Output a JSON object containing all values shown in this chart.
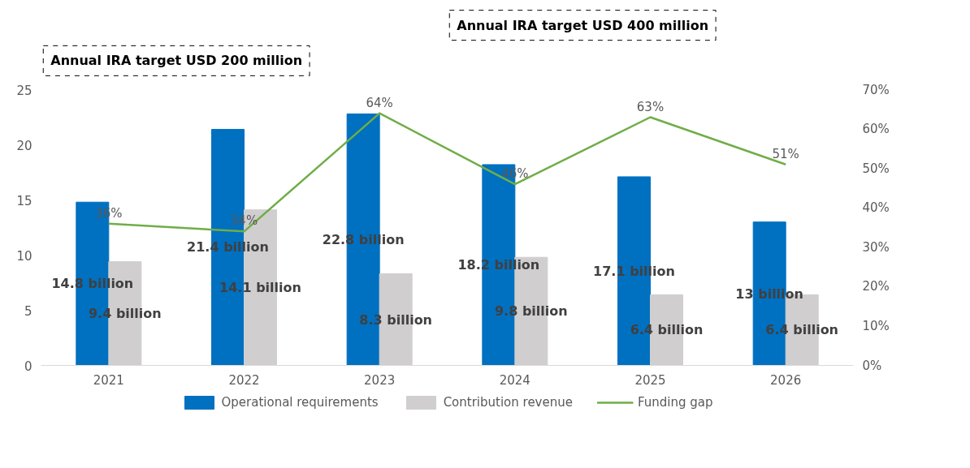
{
  "chart_data": {
    "type": "bar",
    "categories": [
      "2021",
      "2022",
      "2023",
      "2024",
      "2025",
      "2026"
    ],
    "series": [
      {
        "name": "Operational requirements",
        "color": "#0070c0",
        "values": [
          14.8,
          21.4,
          22.8,
          18.2,
          17.1,
          13
        ],
        "value_labels": [
          "14.8 billion",
          "21.4 billion",
          "22.8 billion",
          "18.2 billion",
          "17.1 billion",
          "13 billion"
        ]
      },
      {
        "name": "Contribution revenue",
        "color": "#d0cece",
        "values": [
          9.4,
          14.1,
          8.3,
          9.8,
          6.4,
          6.4
        ],
        "value_labels": [
          "9.4 billion",
          "14.1 billion",
          "8.3 billion",
          "9.8 billion",
          "6.4 billion",
          "6.4 billion"
        ]
      },
      {
        "name": "Funding gap",
        "type": "line",
        "axis": "y2",
        "color": "#70ad47",
        "values": [
          36,
          34,
          64,
          46,
          63,
          51
        ],
        "value_labels": [
          "36%",
          "34%",
          "64%",
          "46%",
          "63%",
          "51%"
        ]
      }
    ],
    "ylim": [
      0,
      25
    ],
    "yticks": [
      0,
      5,
      10,
      15,
      20,
      25
    ],
    "y2lim": [
      0,
      70
    ],
    "y2ticks": [
      {
        "value": 0,
        "label": "0%"
      },
      {
        "value": 10,
        "label": "10%"
      },
      {
        "value": 20,
        "label": "20%"
      },
      {
        "value": 30,
        "label": "30%"
      },
      {
        "value": 40,
        "label": "40%"
      },
      {
        "value": 50,
        "label": "50%"
      },
      {
        "value": 60,
        "label": "60%"
      },
      {
        "value": 70,
        "label": "70%"
      }
    ],
    "annotations": [
      "Annual IRA target USD 200 million",
      "Annual IRA target USD 400 million"
    ],
    "legend": "bottom",
    "grid": false,
    "marker": "none",
    "line_style": "solid"
  }
}
